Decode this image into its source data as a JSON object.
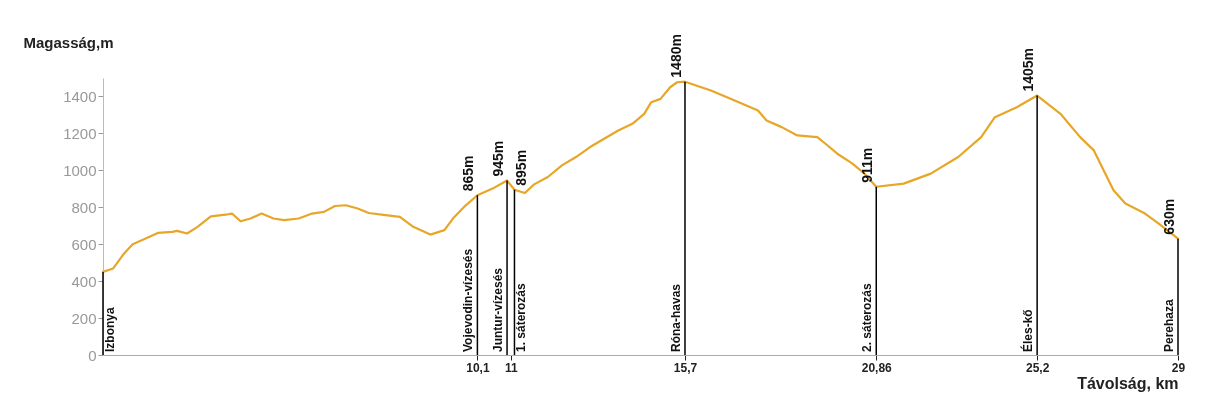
{
  "chart_data": {
    "type": "line",
    "ylabel": "Magasság,m",
    "xlabel": "Távolság, km",
    "xlim": [
      0,
      29
    ],
    "xticks": [
      {
        "value": 10.1,
        "label": "10,1"
      },
      11,
      {
        "value": 15.7,
        "label": "15,7"
      },
      {
        "value": 20.86,
        "label": "20,86"
      },
      {
        "value": 25.2,
        "label": "25,2"
      },
      29
    ],
    "ylim": [
      0,
      1500
    ],
    "yticks": [
      0,
      200,
      400,
      600,
      800,
      1000,
      1200,
      1400
    ],
    "grid": false,
    "marker": "none",
    "line_style": "solid",
    "series": [
      {
        "color": "#e8a628",
        "x": [
          0,
          0.27,
          0.57,
          0.8,
          1.09,
          1.48,
          1.87,
          2.0,
          2.27,
          2.55,
          2.91,
          3.37,
          3.48,
          3.71,
          3.98,
          4.28,
          4.6,
          4.89,
          5.28,
          5.64,
          5.96,
          6.26,
          6.55,
          6.87,
          7.17,
          7.62,
          8.01,
          8.37,
          8.83,
          9.21,
          9.44,
          9.74,
          10.1,
          10.51,
          10.9,
          11.1,
          11.38,
          11.63,
          12.0,
          12.38,
          12.76,
          13.14,
          13.52,
          13.9,
          14.28,
          14.6,
          14.79,
          15.04,
          15.3,
          15.49,
          15.7,
          16.4,
          17.04,
          17.67,
          17.9,
          18.31,
          18.73,
          19.27,
          19.49,
          19.81,
          20.22,
          20.54,
          20.86,
          21.6,
          22.33,
          23.07,
          23.69,
          24.06,
          24.65,
          25.2,
          25.83,
          26.36,
          26.73,
          27.26,
          27.58,
          28.11,
          28.48,
          29
        ],
        "values": [
          450,
          468,
          550,
          600,
          625,
          661,
          667,
          672,
          658,
          694,
          751,
          762,
          766,
          724,
          739,
          766,
          739,
          730,
          739,
          766,
          775,
          807,
          811,
          793,
          769,
          757,
          748,
          694,
          652,
          676,
          739,
          802,
          865,
          901,
          945,
          895,
          877,
          924,
          964,
          1027,
          1072,
          1126,
          1171,
          1216,
          1252,
          1306,
          1369,
          1387,
          1450,
          1477,
          1480,
          1432,
          1378,
          1324,
          1270,
          1234,
          1189,
          1180,
          1144,
          1090,
          1036,
          982,
          911,
          928,
          982,
          1072,
          1180,
          1288,
          1342,
          1405,
          1306,
          1180,
          1108,
          892,
          820,
          766,
          712,
          630
        ]
      }
    ],
    "ref_lines": [
      {
        "axis": "x",
        "value": 0,
        "label": "Izbonya",
        "color": "#000000"
      },
      {
        "axis": "x",
        "value": 10.1,
        "label": "Vojevodin-vízesés",
        "color": "#000000"
      },
      {
        "axis": "x",
        "value": 10.9,
        "label": "Juntur-vízesés",
        "color": "#000000"
      },
      {
        "axis": "x",
        "value": 11.1,
        "label": "1. sáterozás",
        "color": "#000000"
      },
      {
        "axis": "x",
        "value": 15.7,
        "label": "Róna-havas",
        "color": "#000000"
      },
      {
        "axis": "x",
        "value": 20.86,
        "label": "2. sáterozás",
        "color": "#000000"
      },
      {
        "axis": "x",
        "value": 25.2,
        "label": "Éles-kő",
        "color": "#000000"
      },
      {
        "axis": "x",
        "value": 29,
        "label": "Perehaza",
        "color": "#000000"
      }
    ],
    "annotations": [
      {
        "text": "865m",
        "x": 10.1,
        "y": 865
      },
      {
        "text": "945m",
        "x": 10.9,
        "y": 945
      },
      {
        "text": "895m",
        "x": 11.1,
        "y": 895
      },
      {
        "text": "1480m",
        "x": 15.7,
        "y": 1480
      },
      {
        "text": "911m",
        "x": 20.86,
        "y": 911
      },
      {
        "text": "1405m",
        "x": 25.2,
        "y": 1405
      },
      {
        "text": "630m",
        "x": 29,
        "y": 630
      }
    ]
  }
}
